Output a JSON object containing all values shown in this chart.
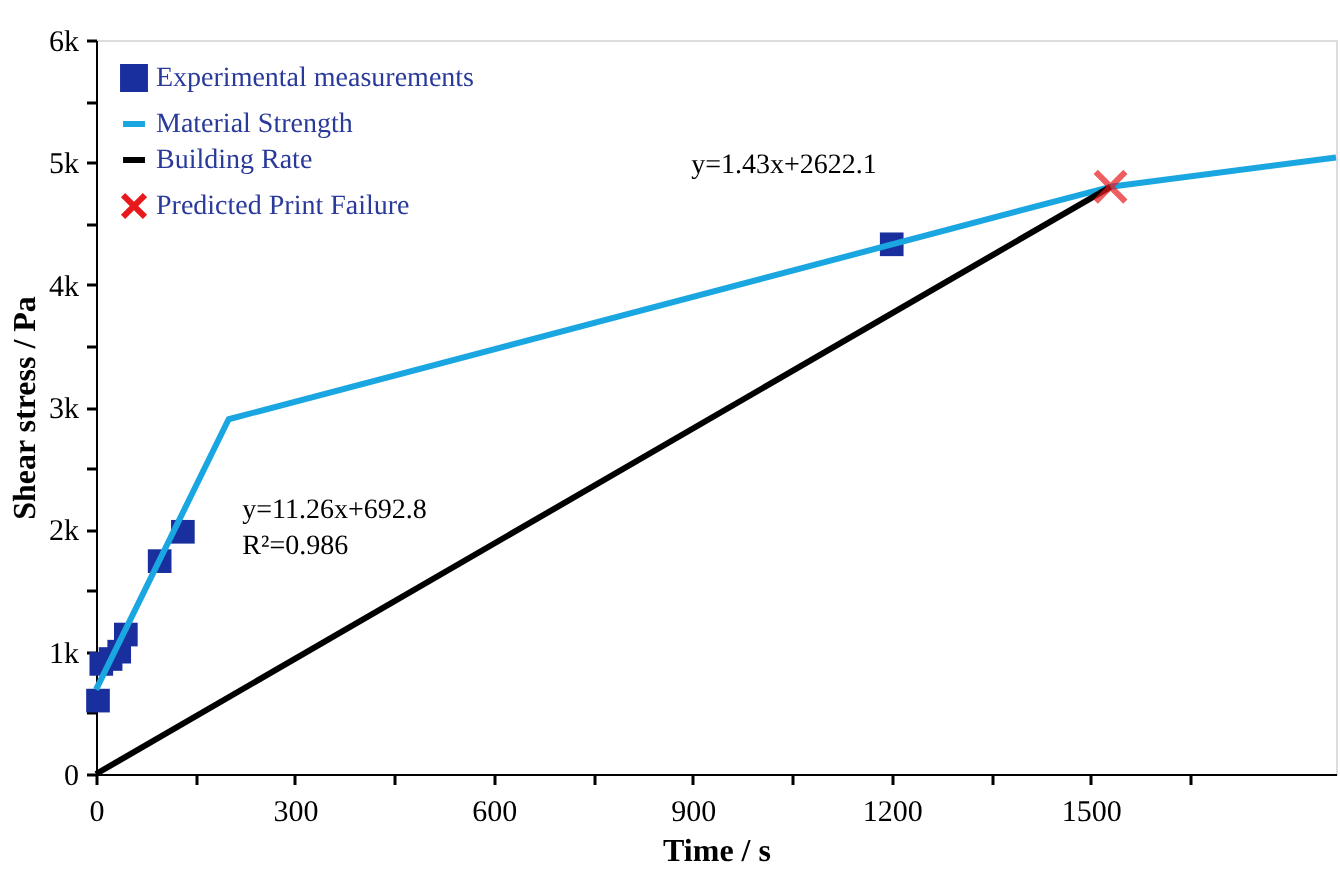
{
  "chart_data": {
    "type": "line",
    "xlabel": "Time / s",
    "ylabel": "Shear stress / Pa",
    "xlim": [
      0,
      1870
    ],
    "ylim": [
      0,
      6000
    ],
    "xticks": [
      0,
      {
        "value": 150,
        "label": null
      },
      300,
      {
        "value": 450,
        "label": null
      },
      600,
      {
        "value": 750,
        "label": null
      },
      900,
      {
        "value": 1050,
        "label": null
      },
      1200,
      {
        "value": 1350,
        "label": null
      },
      1500,
      {
        "value": 1650,
        "label": null
      }
    ],
    "yticks": [
      0,
      {
        "value": 500,
        "label": null
      },
      {
        "value": 1000,
        "label": "1k"
      },
      {
        "value": 1500,
        "label": null
      },
      {
        "value": 2000,
        "label": "2k"
      },
      {
        "value": 2500,
        "label": null
      },
      {
        "value": 3000,
        "label": "3k"
      },
      {
        "value": 3500,
        "label": null
      },
      {
        "value": 4000,
        "label": "4k"
      },
      {
        "value": 4500,
        "label": null
      },
      {
        "value": 5000,
        "label": "5k"
      },
      {
        "value": 5500,
        "label": null
      },
      {
        "value": 6000,
        "label": "6k"
      }
    ],
    "series": [
      {
        "name": "Experimental measurements",
        "type": "scatter",
        "marker": "square",
        "color": "#1a2f9e",
        "x": [
          3,
          8,
          22,
          35,
          45,
          96,
          131,
          1200
        ],
        "values": [
          600,
          900,
          940,
          1000,
          1140,
          1740,
          1980,
          4330
        ]
      },
      {
        "name": "Material Strength",
        "line_style": "solid",
        "color": "#1aa6e0",
        "x": [
          0,
          200,
          1530,
          1870
        ],
        "values": [
          690,
          2900,
          4800,
          5040
        ]
      },
      {
        "name": "Building Rate",
        "line_style": "solid",
        "color": "#000000",
        "x": [
          0,
          1530
        ],
        "values": [
          0,
          4800
        ]
      },
      {
        "name": "Predicted Print Failure",
        "type": "scatter",
        "marker": "cross",
        "color": "#e8191c",
        "x": [
          1530
        ],
        "values": [
          4800
        ]
      }
    ],
    "annotations": [
      "y=11.26x+692.8",
      "R²=0.986",
      "y=1.43x+2622.1"
    ],
    "legend": "top left",
    "grid": false
  }
}
